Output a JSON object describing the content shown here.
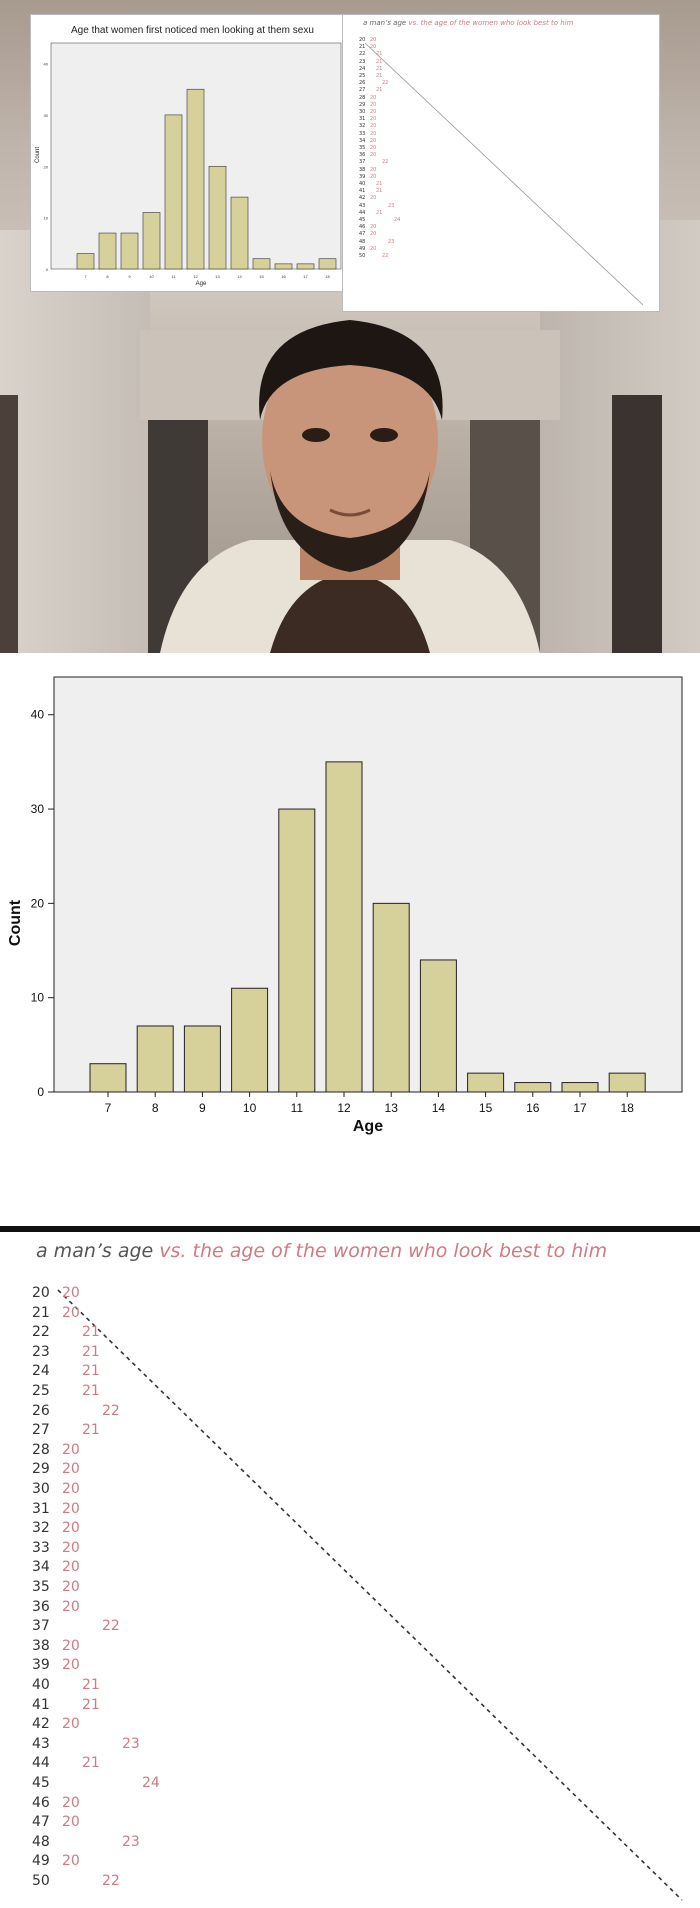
{
  "histogram": {
    "title": "Age that women first noticed men looking at them sexu",
    "xlabel": "Age",
    "ylabel": "Count",
    "bar_color": "#d6d19b",
    "plot_bg": "#efefef"
  },
  "chart_data": {
    "type": "bar",
    "categories": [
      "7",
      "8",
      "9",
      "10",
      "11",
      "12",
      "13",
      "14",
      "15",
      "16",
      "17",
      "18"
    ],
    "values": [
      3,
      7,
      7,
      11,
      30,
      35,
      20,
      14,
      2,
      1,
      1,
      2
    ],
    "xlabel": "Age",
    "ylabel": "Count",
    "ylim": [
      0,
      44
    ],
    "yticks": [
      0,
      10,
      20,
      30,
      40
    ]
  },
  "age_list": {
    "title_prefix": "a man’s age",
    "title_suffix": " vs. the age of the women who look best to him",
    "accent_color": "#d07a82",
    "rows": [
      {
        "man": "20",
        "woman": "20"
      },
      {
        "man": "21",
        "woman": "20"
      },
      {
        "man": "22",
        "woman": "21"
      },
      {
        "man": "23",
        "woman": "21"
      },
      {
        "man": "24",
        "woman": "21"
      },
      {
        "man": "25",
        "woman": "21"
      },
      {
        "man": "26",
        "woman": "22"
      },
      {
        "man": "27",
        "woman": "21"
      },
      {
        "man": "28",
        "woman": "20"
      },
      {
        "man": "29",
        "woman": "20"
      },
      {
        "man": "30",
        "woman": "20"
      },
      {
        "man": "31",
        "woman": "20"
      },
      {
        "man": "32",
        "woman": "20"
      },
      {
        "man": "33",
        "woman": "20"
      },
      {
        "man": "34",
        "woman": "20"
      },
      {
        "man": "35",
        "woman": "20"
      },
      {
        "man": "36",
        "woman": "20"
      },
      {
        "man": "37",
        "woman": "22"
      },
      {
        "man": "38",
        "woman": "20"
      },
      {
        "man": "39",
        "woman": "20"
      },
      {
        "man": "40",
        "woman": "21"
      },
      {
        "man": "41",
        "woman": "21"
      },
      {
        "man": "42",
        "woman": "20"
      },
      {
        "man": "43",
        "woman": "23"
      },
      {
        "man": "44",
        "woman": "21"
      },
      {
        "man": "45",
        "woman": "24"
      },
      {
        "man": "46",
        "woman": "20"
      },
      {
        "man": "47",
        "woman": "20"
      },
      {
        "man": "48",
        "woman": "23"
      },
      {
        "man": "49",
        "woman": "20"
      },
      {
        "man": "50",
        "woman": "22"
      }
    ]
  }
}
